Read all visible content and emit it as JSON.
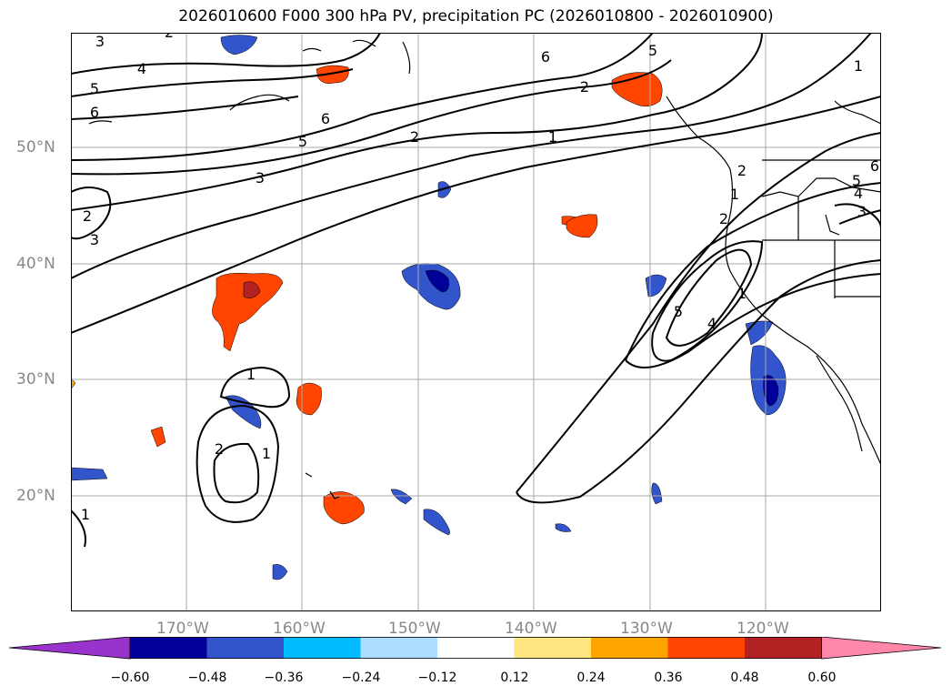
{
  "title": "2026010600 F000 300 hPa PV, precipitation PC (2026010800 - 2026010900)",
  "lat_labels": [
    "50°N",
    "40°N",
    "30°N",
    "20°N"
  ],
  "lon_labels": [
    "170°W",
    "160°W",
    "150°W",
    "140°W",
    "130°W",
    "120°W"
  ],
  "colorbar": {
    "labels": [
      "−0.60",
      "−0.48",
      "−0.36",
      "−0.24",
      "−0.12",
      "0.12",
      "0.24",
      "0.36",
      "0.48",
      "0.60"
    ],
    "colors": [
      "#9933cc",
      "#000099",
      "#3355cc",
      "#00bbff",
      "#aaddff",
      "#ffffff",
      "#ffe680",
      "#ffa500",
      "#ff4500",
      "#b22222",
      "#ff88aa"
    ]
  },
  "contour_labels": [
    "3",
    "2",
    "4",
    "5",
    "6",
    "6",
    "5",
    "2",
    "1",
    "6",
    "5",
    "1",
    "3",
    "2",
    "3",
    "2",
    "1",
    "1",
    "2",
    "4",
    "5",
    "6",
    "5",
    "4",
    "3",
    "1",
    "2",
    "1",
    "2",
    "1"
  ],
  "palette": {
    "neg_dark": "#000099",
    "neg_mid": "#3355cc",
    "neg_light": "#00bbff",
    "pos_light": "#ffe680",
    "pos_mid": "#ffa500",
    "pos_strong": "#ff4500",
    "pos_dark": "#b22222"
  }
}
